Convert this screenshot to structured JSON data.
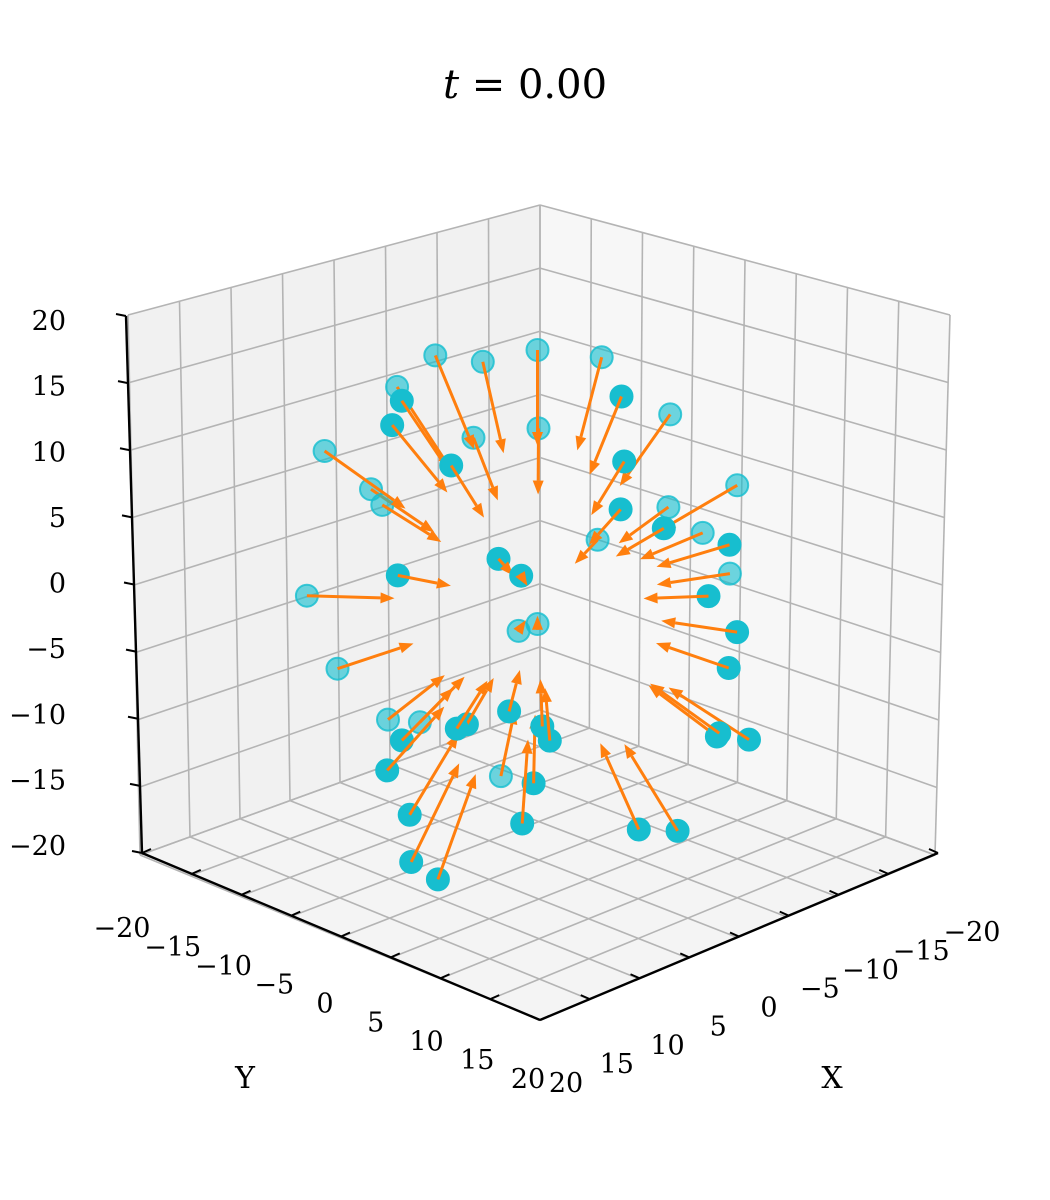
{
  "figure": {
    "title_var": "t",
    "title_eq": " = ",
    "title_val": "0.00"
  },
  "chart_data": {
    "type": "scatter",
    "projection": "3d-quiver",
    "title": "t = 0.00",
    "xlabel": "X",
    "ylabel": "Y",
    "zlabel": "",
    "xlim": [
      -20,
      20
    ],
    "ylim": [
      -20,
      20
    ],
    "zlim": [
      -20,
      20
    ],
    "xticks": [
      "−20",
      "−15",
      "−10",
      "−5",
      "0",
      "5",
      "10",
      "15",
      "20"
    ],
    "yticks": [
      "−20",
      "−15",
      "−10",
      "−5",
      "0",
      "5",
      "10",
      "15",
      "20"
    ],
    "zticks": [
      "−20",
      "−15",
      "−10",
      "−5",
      "0",
      "5",
      "10",
      "15",
      "20"
    ],
    "grid": true,
    "colors": {
      "points": "#17becf",
      "arrows": "#ff7f0e",
      "pane_left": "#f1f1f1",
      "pane_right": "#f7f7f7",
      "pane_floor": "#f4f4f4",
      "grid": "#b4b4b4"
    },
    "points": [
      {
        "x": 0,
        "y": 0,
        "z": 20
      },
      {
        "x": -6.5,
        "y": 3.8,
        "z": 18.8
      },
      {
        "x": -2.4,
        "y": 11.2,
        "z": 18.5
      },
      {
        "x": 7.7,
        "y": -0.8,
        "z": 18.3
      },
      {
        "x": -12.8,
        "y": 1.4,
        "z": 13.8
      },
      {
        "x": -6,
        "y": 8.6,
        "z": 14.8
      },
      {
        "x": 2.4,
        "y": 11,
        "z": 14.7
      },
      {
        "x": 10.2,
        "y": 1.4,
        "z": 14.5
      },
      {
        "x": -1.9,
        "y": -8.3,
        "z": 16.5
      },
      {
        "x": -10.4,
        "y": -4.8,
        "z": 14.7
      },
      {
        "x": -16.5,
        "y": 5,
        "z": 8.7
      },
      {
        "x": 10.6,
        "y": -9.5,
        "z": 9.6
      },
      {
        "x": -0.3,
        "y": 3.6,
        "z": 4.4
      },
      {
        "x": 7.2,
        "y": -1.2,
        "z": 9.1
      },
      {
        "x": 13.4,
        "y": 0.6,
        "z": 9.9
      },
      {
        "x": -8,
        "y": -8,
        "z": 9.2
      },
      {
        "x": 2.3,
        "y": -11,
        "z": 12.4
      },
      {
        "x": -2.2,
        "y": 11.8,
        "z": 4.9
      },
      {
        "x": 16.2,
        "y": -3.2,
        "z": 8.3
      },
      {
        "x": -8.2,
        "y": -1.7,
        "z": 10.2
      },
      {
        "x": -19.9,
        "y": -3,
        "z": 2.4
      },
      {
        "x": 19.4,
        "y": -0.8,
        "z": 3
      },
      {
        "x": 5.9,
        "y": 13.9,
        "z": -4.3
      },
      {
        "x": 12.9,
        "y": -5.2,
        "z": -8.4
      },
      {
        "x": -11.6,
        "y": 3.5,
        "z": -11.6
      },
      {
        "x": -3.1,
        "y": 10.5,
        "z": -8.8
      },
      {
        "x": -15.6,
        "y": 4.6,
        "z": -8.4
      },
      {
        "x": -9,
        "y": -14.9,
        "z": -1.9
      },
      {
        "x": 11.8,
        "y": -9.5,
        "z": -10.2
      },
      {
        "x": 4.6,
        "y": 11.6,
        "z": -5
      },
      {
        "x": -3.5,
        "y": 0.2,
        "z": -14.7
      },
      {
        "x": 18.7,
        "y": 0.3,
        "z": -4.9
      },
      {
        "x": 7.2,
        "y": 7.5,
        "z": -10.1
      },
      {
        "x": -1.7,
        "y": -18.2,
        "z": -0.2
      },
      {
        "x": 11.4,
        "y": 14.1,
        "z": -1.3
      },
      {
        "x": 0,
        "y": 0,
        "z": -1.7
      },
      {
        "x": -1.5,
        "y": 11.3,
        "z": -14
      },
      {
        "x": 9.2,
        "y": 8.6,
        "z": -4.7
      },
      {
        "x": 14.5,
        "y": -4.8,
        "z": -2.4
      },
      {
        "x": 4.8,
        "y": -14.5,
        "z": -0.5
      },
      {
        "x": 0.7,
        "y": -12.4,
        "z": 4.2
      },
      {
        "x": 5.2,
        "y": 15.1,
        "z": -16.1
      },
      {
        "x": 15.1,
        "y": 0.9,
        "z": -13.5
      },
      {
        "x": 14,
        "y": 3.7,
        "z": -12.9
      },
      {
        "x": 13.3,
        "y": 11.9,
        "z": -3.7
      },
      {
        "x": 2.5,
        "y": 15.1,
        "z": -15.5
      },
      {
        "x": 10.8,
        "y": 12.2,
        "z": -10.9
      },
      {
        "x": 2.6,
        "y": 17.6,
        "z": -7.5
      },
      {
        "x": -9.1,
        "y": -7.1,
        "z": -6.9
      },
      {
        "x": -11.2,
        "y": 0.7,
        "z": -12.5
      },
      {
        "x": -19.2,
        "y": 4.1,
        "z": -3.8
      },
      {
        "x": 2.3,
        "y": 3.9,
        "z": 3.9
      },
      {
        "x": 16.3,
        "y": -1,
        "z": 4.9
      },
      {
        "x": -14.7,
        "y": 1,
        "z": 3.8
      }
    ]
  }
}
